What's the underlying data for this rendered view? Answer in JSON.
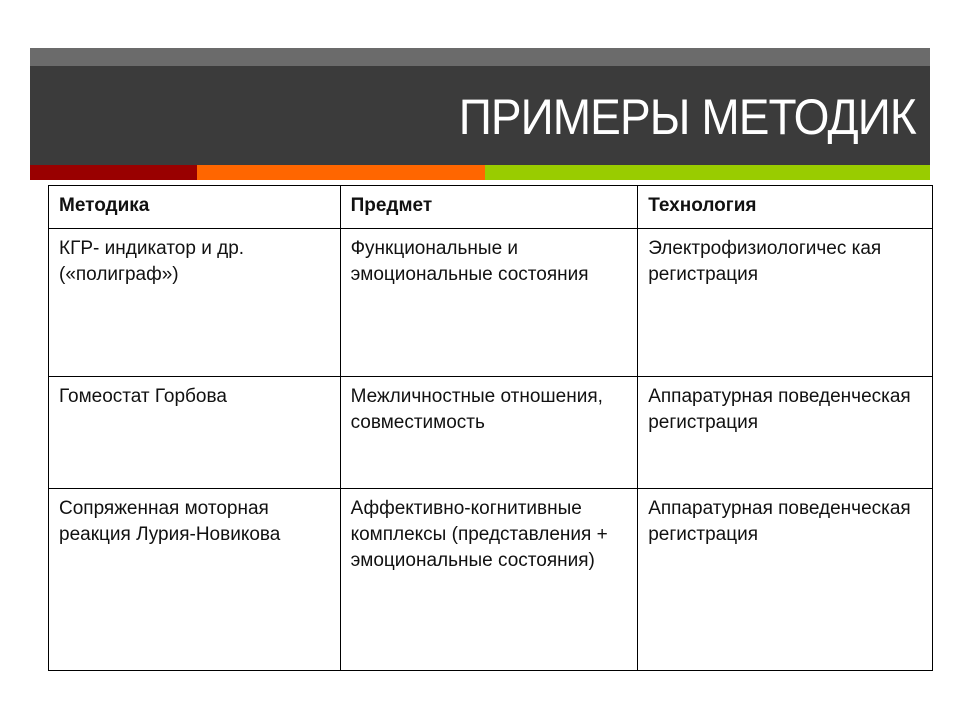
{
  "slide": {
    "title": "ПРИМЕРЫ МЕТОДИК",
    "colors": {
      "top_band": "#6b6b6b",
      "title_bg": "#3b3b3b",
      "accent_red": "#990000",
      "accent_orange": "#ff6600",
      "accent_green": "#99cc00"
    }
  },
  "table": {
    "headers": [
      "Методика",
      "Предмет",
      "Технология"
    ],
    "rows": [
      [
        "КГР- индикатор и др. («полиграф»)",
        "Функциональные и эмоциональные состояния",
        "Электрофизиологичес кая регистрация"
      ],
      [
        "Гомеостат Горбова",
        "Межличностные отношения, совместимость",
        "Аппаратурная поведенческая регистрация"
      ],
      [
        "Сопряженная моторная реакция Лурия-Новикова",
        "Аффективно-когнитивные комплексы (представления + эмоциональные состояния)",
        "Аппаратурная поведенческая регистрация"
      ]
    ]
  }
}
